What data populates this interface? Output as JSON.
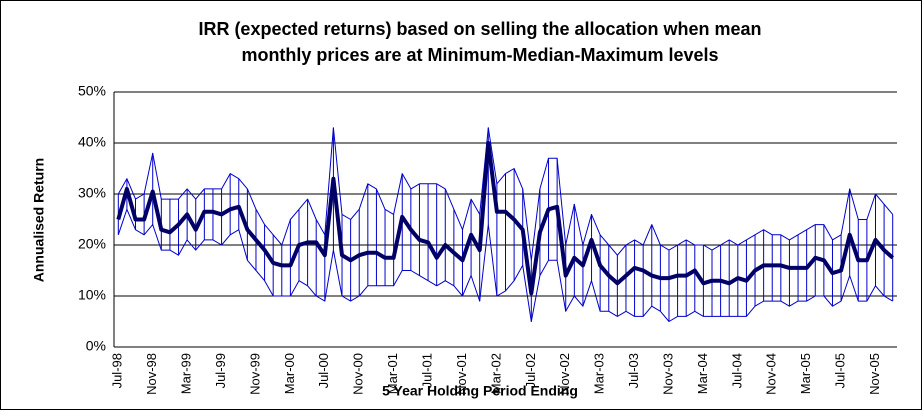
{
  "chart_data": {
    "type": "hilo-line",
    "title": [
      "IRR (expected returns) based on selling the allocation when mean",
      "monthly prices are at Minimum-Median-Maximum levels"
    ],
    "x_label": "5 Year Holding Period Ending",
    "y_label": "Annualised Return",
    "categories": [
      "Jul-98",
      null,
      null,
      null,
      "Nov-98",
      null,
      null,
      null,
      "Mar-99",
      null,
      null,
      null,
      "Jul-99",
      null,
      null,
      null,
      "Nov-99",
      null,
      null,
      null,
      "Mar-00",
      null,
      null,
      null,
      "Jul-00",
      null,
      null,
      null,
      "Nov-00",
      null,
      null,
      null,
      "Mar-01",
      null,
      null,
      null,
      "Jul-01",
      null,
      null,
      null,
      "Nov-01",
      null,
      null,
      null,
      "Mar-02",
      null,
      null,
      null,
      "Jul-02",
      null,
      null,
      null,
      "Nov-02",
      null,
      null,
      null,
      "Mar-03",
      null,
      null,
      null,
      "Jul-03",
      null,
      null,
      null,
      "Nov-03",
      null,
      null,
      null,
      "Mar-04",
      null,
      null,
      null,
      "Jul-04",
      null,
      null,
      null,
      "Nov-04",
      null,
      null,
      null,
      "Mar-05",
      null,
      null,
      null,
      "Jul-05",
      null,
      null,
      null,
      "Nov-05",
      null,
      null
    ],
    "series": [
      {
        "color": "#0000cc",
        "values": [
          22,
          27,
          23,
          22,
          24,
          19,
          19,
          18,
          21,
          19,
          21,
          21,
          20,
          22,
          23,
          17,
          15,
          13,
          10,
          10,
          10,
          13,
          12,
          10,
          9,
          19,
          10,
          9,
          10,
          12,
          12,
          12,
          12,
          15,
          15,
          14,
          13,
          12,
          13,
          12,
          10,
          14,
          9,
          24,
          10,
          11,
          13,
          16,
          5,
          14,
          17,
          17,
          7,
          10,
          8,
          13,
          7,
          7,
          6,
          7,
          6,
          6,
          8,
          7,
          5,
          6,
          6,
          7,
          6,
          6,
          6,
          6,
          6,
          6,
          8,
          9,
          9,
          9,
          8,
          9,
          9,
          10,
          10,
          8,
          9,
          14,
          9,
          9,
          12,
          10,
          9
        ]
      },
      {
        "color": "#000066",
        "values": [
          25,
          31,
          25,
          25,
          30.5,
          23,
          22.5,
          24,
          26,
          23,
          26.5,
          26.5,
          26,
          27,
          27.5,
          23,
          21,
          19,
          16.5,
          16,
          16,
          20,
          20.5,
          20.5,
          18,
          33,
          18,
          17,
          18,
          18.5,
          18.5,
          17.5,
          17.5,
          25.5,
          23,
          21,
          20.5,
          17.5,
          20,
          18.5,
          17,
          22,
          19,
          40,
          26.5,
          26.5,
          25,
          23,
          10.5,
          22.5,
          27,
          27.5,
          14,
          17.5,
          16,
          21,
          16,
          14,
          12.5,
          14,
          15.5,
          15,
          14,
          13.5,
          13.5,
          14,
          14,
          15,
          12.5,
          13,
          13,
          12.5,
          13.5,
          13,
          15,
          16,
          16,
          16,
          15.5,
          15.5,
          15.5,
          17.5,
          17,
          14.5,
          15,
          22,
          17,
          17,
          21,
          19,
          17.5
        ]
      },
      {
        "color": "#0000cc",
        "values": [
          30,
          33,
          29,
          30,
          38,
          29,
          29,
          29,
          31,
          29,
          31,
          31,
          31,
          34,
          33,
          31,
          27,
          24,
          22,
          20,
          25,
          27,
          29,
          25,
          22,
          43,
          26,
          25,
          27,
          32,
          31,
          27,
          26,
          34,
          31,
          32,
          32,
          32,
          31,
          27,
          23,
          29,
          26,
          43,
          32,
          34,
          35,
          31,
          17,
          31,
          37,
          37,
          20,
          28,
          20,
          26,
          22,
          20,
          18,
          20,
          21,
          20,
          24,
          20,
          19,
          20,
          21,
          20,
          20,
          19,
          20,
          21,
          20,
          21,
          22,
          23,
          22,
          22,
          21,
          22,
          23,
          24,
          24,
          21,
          22,
          31,
          25,
          25,
          30,
          28,
          26
        ]
      }
    ],
    "ylim": [
      0,
      50
    ],
    "yticks": [
      {
        "value": 0,
        "label": "0%"
      },
      {
        "value": 10,
        "label": "10%"
      },
      {
        "value": 20,
        "label": "20%"
      },
      {
        "value": 30,
        "label": "30%"
      },
      {
        "value": 40,
        "label": "40%"
      },
      {
        "value": 50,
        "label": "50%"
      }
    ],
    "grid": true
  }
}
